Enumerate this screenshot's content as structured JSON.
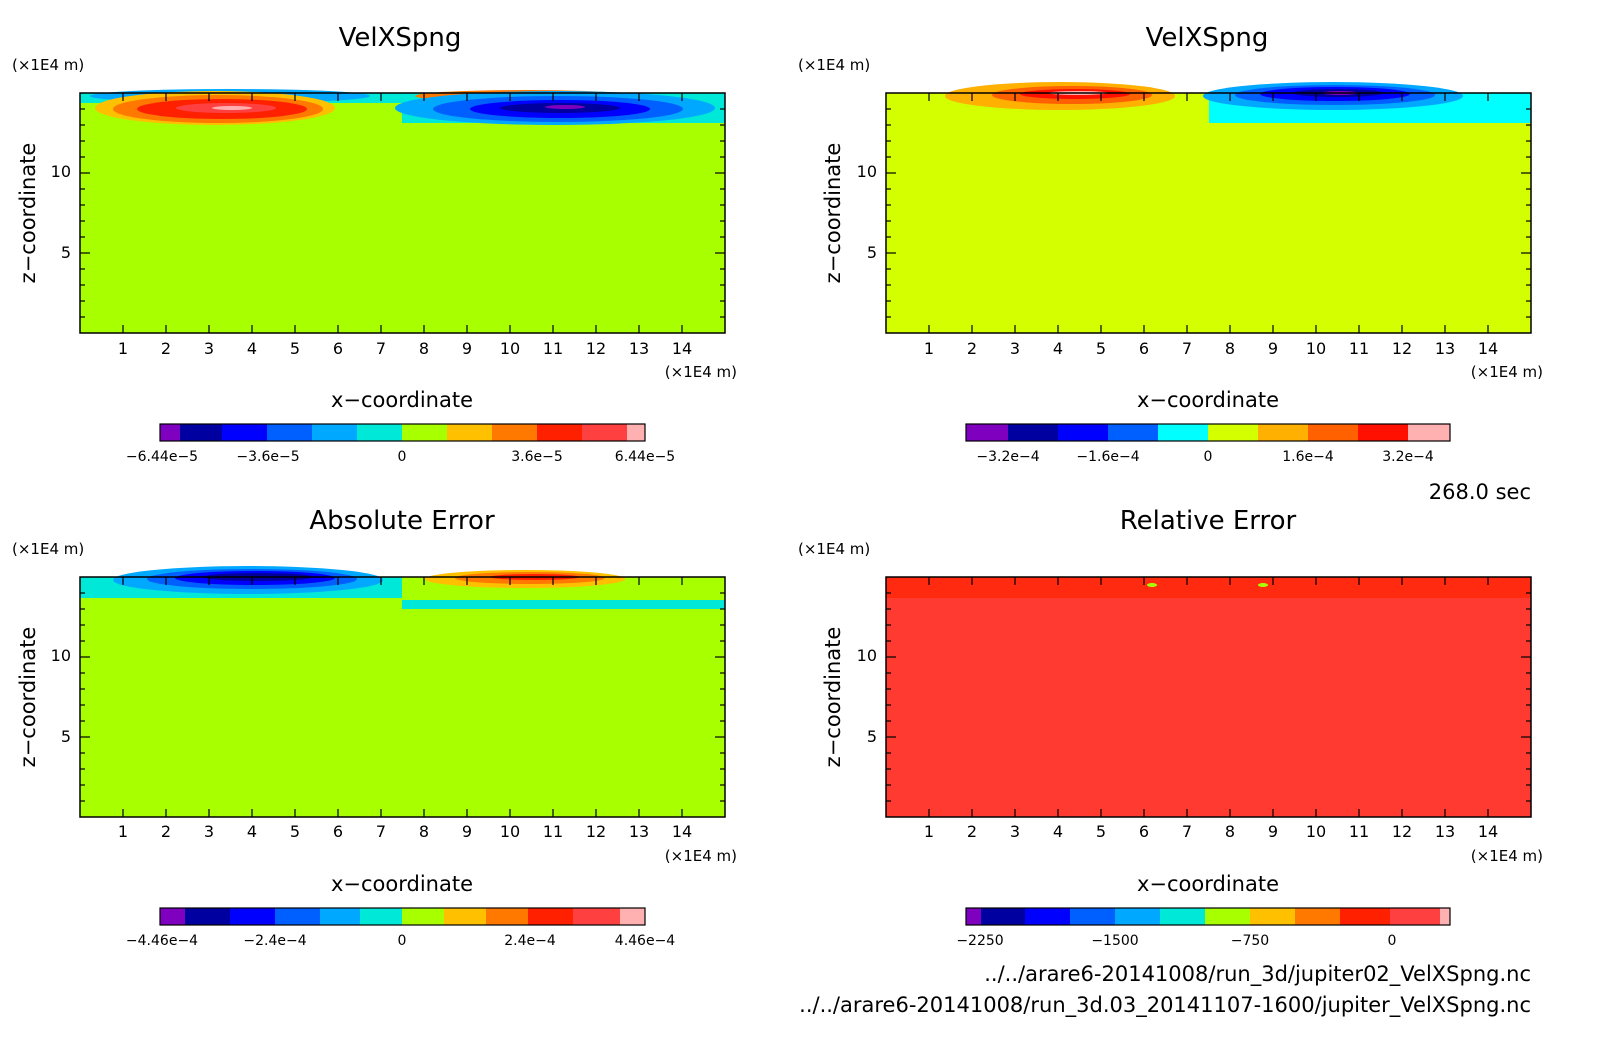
{
  "figure": {
    "time_label": "268.0 sec",
    "file_lines": [
      "../../arare6-20141008/run_3d/jupiter02_VelXSpng.nc",
      "../../arare6-20141008/run_3d.03_20141107-1600/jupiter_VelXSpng.nc"
    ]
  },
  "chart_data": [
    {
      "type": "heatmap",
      "title": "VelXSpng",
      "xlabel": "x−coordinate",
      "ylabel": "z−coordinate",
      "x_unit": "(×1E4 m)",
      "y_unit": "(×1E4 m)",
      "xlim": [
        0,
        15
      ],
      "ylim": [
        0,
        15
      ],
      "x_ticks": [
        "1",
        "2",
        "3",
        "4",
        "5",
        "6",
        "7",
        "8",
        "9",
        "10",
        "11",
        "12",
        "13",
        "14"
      ],
      "y_ticks": [
        "5",
        "10"
      ],
      "colorbar_ticks": [
        "−6.44e−5",
        "−3.6e−5",
        "0",
        "3.6e−5",
        "6.44e−5"
      ],
      "colorbar_colors": [
        "#7f00bf",
        "#0000a0",
        "#0000ff",
        "#0060ff",
        "#00a8ff",
        "#00e8d8",
        "#a8ff00",
        "#ffc000",
        "#ff7800",
        "#ff2000",
        "#ff4040",
        "#ffb0b0"
      ],
      "background_color": "#a8ff00"
    },
    {
      "type": "heatmap",
      "title": "VelXSpng",
      "xlabel": "x−coordinate",
      "ylabel": "z−coordinate",
      "x_unit": "(×1E4 m)",
      "y_unit": "(×1E4 m)",
      "xlim": [
        0,
        15
      ],
      "ylim": [
        0,
        15
      ],
      "x_ticks": [
        "1",
        "2",
        "3",
        "4",
        "5",
        "6",
        "7",
        "8",
        "9",
        "10",
        "11",
        "12",
        "13",
        "14"
      ],
      "y_ticks": [
        "5",
        "10"
      ],
      "colorbar_ticks": [
        "−3.2e−4",
        "−1.6e−4",
        "0",
        "1.6e−4",
        "3.2e−4"
      ],
      "colorbar_colors": [
        "#7f00bf",
        "#0000a0",
        "#0000ff",
        "#0060ff",
        "#00a8ff",
        "#00ffff",
        "#d4ff00",
        "#ffb000",
        "#ff6000",
        "#ff1000",
        "#ffb0b0"
      ],
      "background_color": "#d4ff00"
    },
    {
      "type": "heatmap",
      "title": "Absolute Error",
      "xlabel": "x−coordinate",
      "ylabel": "z−coordinate",
      "x_unit": "(×1E4 m)",
      "y_unit": "(×1E4 m)",
      "xlim": [
        0,
        15
      ],
      "ylim": [
        0,
        15
      ],
      "x_ticks": [
        "1",
        "2",
        "3",
        "4",
        "5",
        "6",
        "7",
        "8",
        "9",
        "10",
        "11",
        "12",
        "13",
        "14"
      ],
      "y_ticks": [
        "5",
        "10"
      ],
      "colorbar_ticks": [
        "−4.46e−4",
        "−2.4e−4",
        "0",
        "2.4e−4",
        "4.46e−4"
      ],
      "colorbar_colors": [
        "#7f00bf",
        "#0000a0",
        "#0000ff",
        "#0060ff",
        "#00a8ff",
        "#00e8d8",
        "#a8ff00",
        "#ffc000",
        "#ff7800",
        "#ff2000",
        "#ff4040",
        "#ffb0b0"
      ],
      "background_color": "#a8ff00"
    },
    {
      "type": "heatmap",
      "title": "Relative Error",
      "xlabel": "x−coordinate",
      "ylabel": "z−coordinate",
      "x_unit": "(×1E4 m)",
      "y_unit": "(×1E4 m)",
      "xlim": [
        0,
        15
      ],
      "ylim": [
        0,
        15
      ],
      "x_ticks": [
        "1",
        "2",
        "3",
        "4",
        "5",
        "6",
        "7",
        "8",
        "9",
        "10",
        "11",
        "12",
        "13",
        "14"
      ],
      "y_ticks": [
        "5",
        "10"
      ],
      "colorbar_ticks": [
        "−2250",
        "−1500",
        "−750",
        "0"
      ],
      "colorbar_colors": [
        "#7f00bf",
        "#0000a0",
        "#0000ff",
        "#0060ff",
        "#00a8ff",
        "#00e8d8",
        "#a8ff00",
        "#ffc000",
        "#ff7800",
        "#ff2000",
        "#ff4040",
        "#ffb0b0"
      ],
      "background_color": "#ff3a30"
    }
  ]
}
